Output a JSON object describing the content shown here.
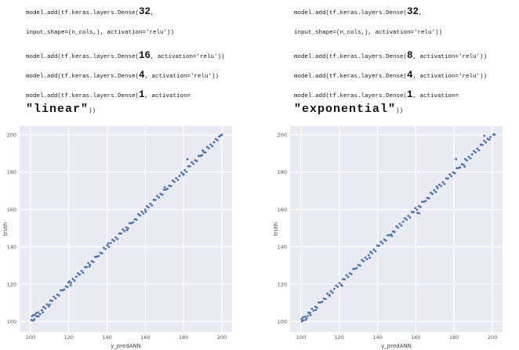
{
  "code_blocks": {
    "left": {
      "lines": [
        [
          {
            "text": "model.add(tf.keras.layers.Dense(",
            "size": "sm"
          },
          {
            "text": "32",
            "size": "lg"
          },
          {
            "text": ",",
            "size": "sm"
          }
        ],
        [
          {
            "text": "input_shape=(n_cols,), activation='relu'))",
            "size": "sm"
          }
        ],
        [
          {
            "text": "model.add(tf.keras.layers.Dense(",
            "size": "sm"
          },
          {
            "text": "16",
            "size": "lg"
          },
          {
            "text": ", activation='relu'))",
            "size": "sm"
          }
        ],
        [
          {
            "text": "model.add(tf.keras.layers.Dense(",
            "size": "sm"
          },
          {
            "text": "4",
            "size": "lg"
          },
          {
            "text": ", activation='relu'))",
            "size": "sm"
          }
        ],
        [
          {
            "text": "model.add(tf.keras.layers.Dense(",
            "size": "sm"
          },
          {
            "text": "1",
            "size": "lg"
          },
          {
            "text": ", activation=",
            "size": "sm"
          }
        ],
        [
          {
            "text": "\"linear\"",
            "size": "xl"
          },
          {
            "text": "))",
            "size": "sm"
          }
        ]
      ]
    },
    "right": {
      "lines": [
        [
          {
            "text": "model.add(tf.keras.layers.Dense(",
            "size": "sm"
          },
          {
            "text": "32",
            "size": "lg"
          },
          {
            "text": ",",
            "size": "sm"
          }
        ],
        [
          {
            "text": "input_shape=(n_cols,), activation='relu'))",
            "size": "sm"
          }
        ],
        [
          {
            "text": "model.add(tf.keras.layers.Dense(",
            "size": "sm"
          },
          {
            "text": "8",
            "size": "lg"
          },
          {
            "text": ", activation='relu'))",
            "size": "sm"
          }
        ],
        [
          {
            "text": "model.add(tf.keras.layers.Dense(",
            "size": "sm"
          },
          {
            "text": "4",
            "size": "lg"
          },
          {
            "text": ", activation='relu'))",
            "size": "sm"
          }
        ],
        [
          {
            "text": "model.add(tf.keras.layers.Dense(",
            "size": "sm"
          },
          {
            "text": "1",
            "size": "lg"
          },
          {
            "text": ", activation=",
            "size": "sm"
          }
        ],
        [
          {
            "text": "\"exponential\"",
            "size": "xl"
          },
          {
            "text": "))",
            "size": "sm"
          }
        ]
      ]
    }
  },
  "chart_data": [
    {
      "type": "scatter",
      "title": "",
      "xlabel": "y_predANN",
      "ylabel": "truth",
      "xlim": [
        94.3,
        205.3
      ],
      "ylim": [
        94.4,
        204.7
      ],
      "xticks": [
        100,
        120,
        140,
        160,
        180,
        200
      ],
      "yticks": [
        100,
        120,
        140,
        160,
        180,
        200
      ],
      "grid": true,
      "legend": "none",
      "bg_color": "#eaeaf2",
      "grid_color": "#ffffff",
      "point_color": "#4c72b0",
      "points": [
        [
          100.5,
          100.8
        ],
        [
          101.4,
          100.5
        ],
        [
          102.3,
          103.5
        ],
        [
          103.2,
          102.8
        ],
        [
          104.1,
          104.8
        ],
        [
          105.0,
          103.9
        ],
        [
          105.9,
          106.0
        ],
        [
          106.8,
          107.8
        ],
        [
          107.7,
          107.1
        ],
        [
          108.6,
          109.1
        ],
        [
          109.5,
          108.2
        ],
        [
          110.4,
          111.2
        ],
        [
          111.3,
          111.1
        ],
        [
          112.2,
          113.3
        ],
        [
          113.1,
          112.4
        ],
        [
          114.0,
          114.4
        ],
        [
          114.9,
          113.9
        ],
        [
          115.8,
          116.7
        ],
        [
          116.7,
          116.7
        ],
        [
          117.6,
          117.1
        ],
        [
          118.5,
          118.8
        ],
        [
          119.4,
          118.5
        ],
        [
          120.3,
          121.5
        ],
        [
          121.2,
          120.8
        ],
        [
          122.1,
          122.8
        ],
        [
          123.0,
          121.9
        ],
        [
          123.9,
          124.0
        ],
        [
          124.8,
          125.8
        ],
        [
          125.7,
          125.1
        ],
        [
          126.6,
          127.1
        ],
        [
          127.5,
          126.2
        ],
        [
          128.4,
          129.2
        ],
        [
          129.3,
          129.1
        ],
        [
          130.2,
          131.3
        ],
        [
          131.1,
          130.4
        ],
        [
          132.0,
          132.4
        ],
        [
          132.9,
          131.9
        ],
        [
          133.8,
          134.7
        ],
        [
          134.7,
          134.7
        ],
        [
          135.6,
          135.1
        ],
        [
          136.5,
          136.8
        ],
        [
          137.4,
          136.5
        ],
        [
          138.3,
          139.5
        ],
        [
          139.2,
          138.8
        ],
        [
          140.1,
          140.8
        ],
        [
          141.0,
          139.9
        ],
        [
          141.9,
          142.0
        ],
        [
          142.8,
          143.8
        ],
        [
          143.7,
          143.1
        ],
        [
          144.6,
          145.1
        ],
        [
          145.5,
          144.2
        ],
        [
          146.4,
          147.2
        ],
        [
          147.3,
          147.1
        ],
        [
          148.2,
          149.3
        ],
        [
          149.1,
          148.4
        ],
        [
          150.0,
          150.4
        ],
        [
          150.9,
          149.9
        ],
        [
          151.8,
          152.7
        ],
        [
          152.7,
          152.7
        ],
        [
          153.6,
          153.1
        ],
        [
          154.5,
          154.8
        ],
        [
          155.4,
          154.5
        ],
        [
          156.3,
          157.5
        ],
        [
          157.2,
          156.8
        ],
        [
          158.1,
          158.8
        ],
        [
          159.0,
          157.9
        ],
        [
          159.9,
          160.0
        ],
        [
          160.8,
          161.8
        ],
        [
          161.7,
          161.1
        ],
        [
          162.6,
          163.1
        ],
        [
          163.5,
          162.2
        ],
        [
          164.4,
          165.2
        ],
        [
          165.3,
          165.1
        ],
        [
          166.2,
          167.3
        ],
        [
          167.1,
          166.4
        ],
        [
          168.0,
          168.4
        ],
        [
          168.9,
          167.9
        ],
        [
          169.8,
          170.7
        ],
        [
          170.7,
          170.7
        ],
        [
          171.6,
          171.1
        ],
        [
          172.5,
          172.8
        ],
        [
          173.4,
          172.5
        ],
        [
          174.3,
          175.5
        ],
        [
          175.2,
          174.8
        ],
        [
          176.1,
          176.8
        ],
        [
          177.0,
          175.9
        ],
        [
          177.9,
          178.0
        ],
        [
          178.8,
          179.8
        ],
        [
          179.7,
          179.1
        ],
        [
          180.6,
          181.1
        ],
        [
          181.5,
          180.2
        ],
        [
          182.4,
          183.2
        ],
        [
          183.3,
          183.1
        ],
        [
          184.2,
          185.3
        ],
        [
          185.1,
          184.4
        ],
        [
          186.0,
          186.4
        ],
        [
          186.9,
          185.9
        ],
        [
          187.8,
          188.7
        ],
        [
          188.7,
          188.7
        ],
        [
          189.6,
          189.1
        ],
        [
          190.5,
          190.8
        ],
        [
          191.4,
          190.5
        ],
        [
          192.3,
          193.5
        ],
        [
          193.2,
          192.8
        ],
        [
          194.1,
          194.8
        ],
        [
          195.0,
          193.9
        ],
        [
          195.9,
          196.0
        ],
        [
          196.8,
          197.8
        ],
        [
          197.7,
          197.1
        ],
        [
          198.6,
          199.1
        ],
        [
          100.8,
          102.9
        ],
        [
          101.5,
          103.4
        ],
        [
          102.0,
          101.2
        ],
        [
          103.0,
          104.5
        ],
        [
          104.2,
          102.8
        ],
        [
          106.5,
          104.9
        ],
        [
          110.0,
          109.0
        ],
        [
          119.8,
          120.9
        ],
        [
          121.0,
          119.5
        ],
        [
          130.8,
          129.4
        ],
        [
          140.6,
          141.9
        ],
        [
          150.5,
          148.9
        ],
        [
          160.2,
          158.9
        ],
        [
          170.2,
          172.0
        ],
        [
          180.0,
          178.6
        ],
        [
          190.0,
          191.6
        ],
        [
          199.3,
          199.6
        ],
        [
          200.0,
          200.1
        ],
        [
          182.0,
          187.0
        ]
      ]
    },
    {
      "type": "scatter",
      "title": "",
      "xlabel": "y_predANN",
      "ylabel": "truth",
      "xlim": [
        94.3,
        205.3
      ],
      "ylim": [
        94.4,
        204.7
      ],
      "xticks": [
        100,
        120,
        140,
        160,
        180,
        200
      ],
      "yticks": [
        100,
        120,
        140,
        160,
        180,
        200
      ],
      "grid": true,
      "legend": "none",
      "bg_color": "#eaeaf2",
      "grid_color": "#ffffff",
      "point_color": "#4c72b0",
      "points": [
        [
          100.3,
          101.3
        ],
        [
          101.2,
          100.6
        ],
        [
          102.1,
          102.6
        ],
        [
          103.0,
          101.7
        ],
        [
          103.9,
          104.7
        ],
        [
          104.8,
          104.6
        ],
        [
          105.7,
          106.8
        ],
        [
          106.6,
          105.9
        ],
        [
          107.5,
          107.9
        ],
        [
          108.4,
          107.4
        ],
        [
          109.3,
          110.2
        ],
        [
          110.2,
          110.2
        ],
        [
          111.1,
          110.6
        ],
        [
          112.0,
          112.3
        ],
        [
          112.9,
          112.0
        ],
        [
          113.8,
          115.0
        ],
        [
          114.7,
          114.3
        ],
        [
          115.6,
          116.3
        ],
        [
          116.5,
          115.4
        ],
        [
          117.4,
          117.5
        ],
        [
          118.3,
          119.3
        ],
        [
          119.2,
          118.6
        ],
        [
          120.1,
          120.6
        ],
        [
          121.0,
          119.7
        ],
        [
          121.9,
          122.7
        ],
        [
          122.8,
          122.6
        ],
        [
          123.7,
          124.8
        ],
        [
          124.6,
          123.9
        ],
        [
          125.5,
          125.9
        ],
        [
          126.4,
          125.4
        ],
        [
          127.3,
          128.2
        ],
        [
          128.2,
          128.2
        ],
        [
          129.1,
          128.6
        ],
        [
          130.0,
          130.3
        ],
        [
          130.9,
          130.0
        ],
        [
          131.8,
          133.0
        ],
        [
          132.7,
          132.3
        ],
        [
          133.6,
          134.3
        ],
        [
          134.5,
          133.4
        ],
        [
          135.4,
          135.5
        ],
        [
          136.3,
          137.3
        ],
        [
          137.2,
          136.6
        ],
        [
          138.1,
          138.6
        ],
        [
          139.0,
          137.7
        ],
        [
          139.9,
          140.7
        ],
        [
          140.8,
          140.6
        ],
        [
          141.7,
          142.8
        ],
        [
          142.6,
          141.9
        ],
        [
          143.5,
          143.9
        ],
        [
          144.4,
          143.4
        ],
        [
          145.3,
          146.2
        ],
        [
          146.2,
          146.2
        ],
        [
          147.1,
          146.6
        ],
        [
          148.0,
          148.3
        ],
        [
          148.9,
          148.0
        ],
        [
          149.8,
          151.0
        ],
        [
          150.7,
          150.3
        ],
        [
          151.6,
          152.3
        ],
        [
          152.5,
          151.4
        ],
        [
          153.4,
          153.5
        ],
        [
          154.3,
          155.3
        ],
        [
          155.2,
          154.6
        ],
        [
          156.1,
          156.6
        ],
        [
          157.0,
          155.7
        ],
        [
          157.9,
          158.7
        ],
        [
          158.8,
          158.6
        ],
        [
          159.7,
          160.8
        ],
        [
          160.6,
          159.9
        ],
        [
          161.5,
          161.9
        ],
        [
          162.4,
          161.4
        ],
        [
          163.3,
          164.2
        ],
        [
          164.2,
          164.2
        ],
        [
          165.1,
          164.6
        ],
        [
          166.0,
          166.3
        ],
        [
          166.9,
          166.0
        ],
        [
          167.8,
          169.0
        ],
        [
          168.7,
          168.3
        ],
        [
          169.6,
          170.3
        ],
        [
          170.5,
          169.4
        ],
        [
          171.4,
          171.5
        ],
        [
          172.3,
          173.3
        ],
        [
          173.2,
          172.6
        ],
        [
          174.1,
          174.6
        ],
        [
          175.0,
          173.7
        ],
        [
          175.9,
          176.7
        ],
        [
          176.8,
          176.6
        ],
        [
          177.7,
          178.8
        ],
        [
          178.6,
          177.9
        ],
        [
          179.5,
          179.9
        ],
        [
          180.4,
          179.4
        ],
        [
          181.3,
          182.2
        ],
        [
          182.2,
          182.2
        ],
        [
          183.1,
          182.6
        ],
        [
          184.0,
          184.3
        ],
        [
          184.9,
          184.0
        ],
        [
          185.8,
          187.0
        ],
        [
          186.7,
          186.3
        ],
        [
          187.6,
          188.3
        ],
        [
          188.5,
          187.4
        ],
        [
          189.4,
          189.5
        ],
        [
          190.3,
          191.3
        ],
        [
          191.2,
          190.6
        ],
        [
          192.1,
          192.6
        ],
        [
          193.0,
          191.7
        ],
        [
          193.9,
          194.7
        ],
        [
          194.8,
          194.6
        ],
        [
          195.7,
          196.8
        ],
        [
          196.6,
          195.9
        ],
        [
          197.5,
          197.9
        ],
        [
          198.4,
          197.4
        ],
        [
          100.5,
          100.1
        ],
        [
          101.0,
          102.2
        ],
        [
          102.4,
          100.9
        ],
        [
          103.5,
          103.0
        ],
        [
          105.0,
          103.4
        ],
        [
          107.8,
          106.2
        ],
        [
          115.0,
          113.8
        ],
        [
          121.5,
          119.2
        ],
        [
          135.9,
          134.2
        ],
        [
          147.5,
          145.8
        ],
        [
          160.9,
          158.2
        ],
        [
          161.8,
          158.0
        ],
        [
          170.9,
          172.4
        ],
        [
          181.0,
          187.0
        ],
        [
          185.5,
          183.0
        ],
        [
          195.8,
          199.5
        ],
        [
          199.0,
          198.8
        ],
        [
          200.5,
          200.2
        ],
        [
          201.2,
          200.1
        ]
      ]
    }
  ]
}
